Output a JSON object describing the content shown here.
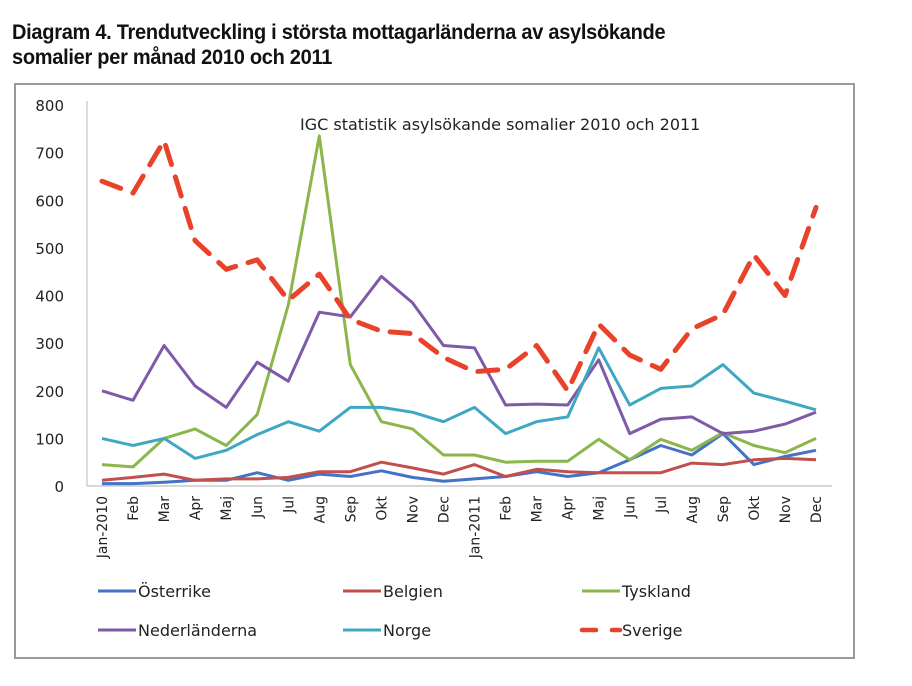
{
  "title_lines": [
    "Diagram 4. Trendutveckling i största mottagarländerna av asylsökande",
    "somalier per månad 2010 och 2011"
  ],
  "chart_data": {
    "type": "line",
    "title": "Diagram 4. Trendutveckling i största mottagarländerna av asylsökande somalier per månad 2010 och 2011",
    "annotation": "IGC statistik asylsökande somalier 2010 och 2011",
    "xlabel": "",
    "ylabel": "",
    "ylim": [
      0,
      800
    ],
    "yticks": [
      0,
      100,
      200,
      300,
      400,
      500,
      600,
      700,
      800
    ],
    "grid": false,
    "legend_position": "bottom",
    "categories": [
      "Jan-2010",
      "Feb",
      "Mar",
      "Apr",
      "Maj",
      "Jun",
      "Jul",
      "Aug",
      "Sep",
      "Okt",
      "Nov",
      "Dec",
      "Jan-2011",
      "Feb",
      "Mar",
      "Apr",
      "Maj",
      "Jun",
      "Jul",
      "Aug",
      "Sep",
      "Okt",
      "Nov",
      "Dec"
    ],
    "series": [
      {
        "name": "Österrike",
        "color": "#4472c4",
        "dash": false,
        "values": [
          5,
          5,
          8,
          12,
          12,
          28,
          12,
          25,
          20,
          32,
          18,
          10,
          15,
          20,
          30,
          20,
          28,
          55,
          85,
          65,
          110,
          45,
          62,
          75
        ]
      },
      {
        "name": "Belgien",
        "color": "#c0504d",
        "dash": false,
        "values": [
          12,
          18,
          25,
          12,
          15,
          15,
          18,
          30,
          30,
          50,
          38,
          25,
          45,
          20,
          35,
          30,
          28,
          28,
          28,
          48,
          45,
          55,
          58,
          55
        ]
      },
      {
        "name": "Tyskland",
        "color": "#8ab64a",
        "dash": false,
        "values": [
          45,
          40,
          100,
          120,
          85,
          150,
          380,
          735,
          255,
          135,
          120,
          65,
          65,
          50,
          52,
          52,
          98,
          55,
          98,
          75,
          112,
          85,
          70,
          100
        ]
      },
      {
        "name": "Nederländerna",
        "color": "#7f5aa8",
        "dash": false,
        "values": [
          200,
          180,
          295,
          210,
          165,
          260,
          220,
          365,
          355,
          440,
          385,
          295,
          290,
          170,
          172,
          170,
          265,
          110,
          140,
          145,
          110,
          115,
          130,
          155
        ]
      },
      {
        "name": "Norge",
        "color": "#3fa7c4",
        "dash": false,
        "values": [
          100,
          85,
          100,
          58,
          75,
          108,
          135,
          115,
          165,
          165,
          155,
          135,
          165,
          110,
          135,
          145,
          290,
          170,
          205,
          210,
          255,
          195,
          178,
          160
        ]
      },
      {
        "name": "Sverige",
        "color": "#e8432a",
        "dash": true,
        "values": [
          640,
          615,
          725,
          515,
          455,
          475,
          390,
          445,
          350,
          325,
          320,
          270,
          240,
          245,
          295,
          200,
          340,
          275,
          245,
          330,
          360,
          485,
          400,
          585
        ]
      }
    ]
  }
}
